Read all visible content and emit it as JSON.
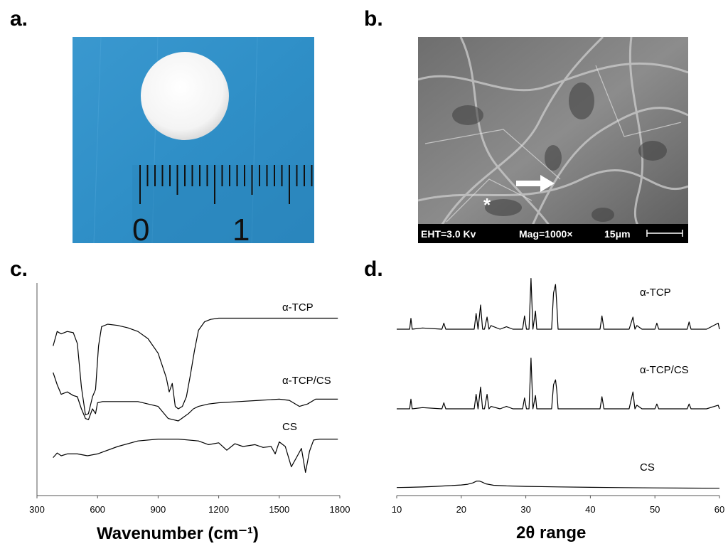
{
  "panels": {
    "a": {
      "label": "a.",
      "ruler": {
        "mark_0": "0",
        "mark_1": "1"
      }
    },
    "b": {
      "label": "b.",
      "sem_info": {
        "eht": "EHT=3.0 Kv",
        "mag": "Mag=1000×",
        "scale": "15μm"
      },
      "asterisk": "*"
    },
    "c": {
      "label": "c."
    },
    "d": {
      "label": "d."
    }
  },
  "colors": {
    "photo_background": "#2f8fc7",
    "sample": "#ffffff",
    "sem_gray": "#8c8c8c",
    "line": "#000000"
  },
  "chart_data": [
    {
      "panel": "c",
      "type": "line",
      "xlabel": "Wavenumber (cm⁻¹)",
      "ylabel": "",
      "xlim": [
        300,
        1800
      ],
      "xticks": [
        "300",
        "600",
        "900",
        "1200",
        "1500",
        "1800"
      ],
      "y_axis_ticks": false,
      "series": [
        {
          "name": "α-TCP",
          "x": [
            380,
            400,
            420,
            450,
            480,
            500,
            520,
            540,
            555,
            575,
            590,
            605,
            620,
            650,
            700,
            750,
            800,
            850,
            900,
            940,
            955,
            970,
            985,
            1000,
            1020,
            1040,
            1060,
            1080,
            1100,
            1130,
            1160,
            1200,
            1300,
            1400,
            1500,
            1600,
            1700,
            1790
          ],
          "y": [
            0.62,
            0.74,
            0.72,
            0.74,
            0.73,
            0.64,
            0.28,
            0.05,
            0.06,
            0.2,
            0.26,
            0.62,
            0.78,
            0.8,
            0.79,
            0.77,
            0.74,
            0.68,
            0.56,
            0.36,
            0.24,
            0.31,
            0.12,
            0.1,
            0.12,
            0.2,
            0.38,
            0.58,
            0.75,
            0.82,
            0.84,
            0.85,
            0.85,
            0.85,
            0.85,
            0.85,
            0.85,
            0.85
          ]
        },
        {
          "name": "α-TCP/CS",
          "x": [
            380,
            400,
            420,
            450,
            480,
            500,
            520,
            540,
            555,
            575,
            590,
            600,
            625,
            650,
            700,
            800,
            900,
            950,
            975,
            1000,
            1025,
            1050,
            1075,
            1100,
            1150,
            1200,
            1300,
            1400,
            1500,
            1550,
            1600,
            1640,
            1680,
            1790
          ],
          "y": [
            0.4,
            0.3,
            0.22,
            0.24,
            0.21,
            0.2,
            0.1,
            0.02,
            0.01,
            0.1,
            0.06,
            0.15,
            0.16,
            0.16,
            0.16,
            0.16,
            0.12,
            0.02,
            0.01,
            0.0,
            0.03,
            0.06,
            0.1,
            0.12,
            0.14,
            0.15,
            0.16,
            0.17,
            0.18,
            0.17,
            0.12,
            0.14,
            0.18,
            0.18
          ]
        },
        {
          "name": "CS",
          "x": [
            380,
            400,
            420,
            450,
            500,
            550,
            600,
            700,
            800,
            900,
            1000,
            1100,
            1150,
            1200,
            1240,
            1280,
            1320,
            1380,
            1420,
            1460,
            1480,
            1500,
            1530,
            1560,
            1590,
            1610,
            1630,
            1650,
            1670,
            1700,
            1790
          ],
          "y": [
            -0.12,
            -0.07,
            -0.1,
            -0.08,
            -0.08,
            -0.1,
            -0.08,
            0.0,
            0.06,
            0.08,
            0.08,
            0.06,
            0.02,
            0.04,
            -0.04,
            0.03,
            0.0,
            0.02,
            -0.01,
            0.0,
            -0.08,
            0.05,
            0.0,
            -0.22,
            -0.1,
            -0.02,
            -0.28,
            -0.05,
            0.07,
            0.08,
            0.08
          ]
        }
      ]
    },
    {
      "panel": "d",
      "type": "line",
      "xlabel": "2θ range",
      "ylabel": "",
      "xlim": [
        10,
        60
      ],
      "xticks": [
        "10",
        "20",
        "30",
        "40",
        "50",
        "60"
      ],
      "y_axis_ticks": false,
      "series": [
        {
          "name": "α-TCP",
          "x": [
            10,
            12,
            12.2,
            12.4,
            14,
            17,
            17.3,
            17.6,
            20,
            22,
            22.3,
            22.6,
            23,
            23.3,
            23.6,
            24,
            24.3,
            24.6,
            26,
            27,
            28,
            29.5,
            29.8,
            30.1,
            30.5,
            30.8,
            31.1,
            31.5,
            31.7,
            31.9,
            32.5,
            34,
            34.3,
            34.6,
            34.8,
            35.0,
            35.4,
            36,
            38,
            40,
            41.5,
            41.8,
            42.1,
            43,
            44,
            46,
            46.6,
            46.9,
            47.2,
            48,
            50,
            50.3,
            50.6,
            52,
            55,
            55.3,
            55.6,
            58,
            59.8,
            60
          ],
          "y": [
            0,
            0,
            0.09,
            0,
            0.01,
            0,
            0.05,
            0,
            0,
            0,
            0.13,
            0,
            0.2,
            0,
            0,
            0.1,
            0,
            0.03,
            0,
            0.02,
            0,
            0,
            0.11,
            0,
            0,
            0.42,
            0,
            0.15,
            0,
            0,
            0,
            0,
            0.3,
            0.37,
            0.2,
            0,
            0,
            0,
            0,
            0,
            0,
            0.11,
            0,
            0,
            0,
            0,
            0.1,
            0,
            0.03,
            0,
            0,
            0.05,
            0,
            0,
            0,
            0.06,
            0,
            0,
            0.05,
            0
          ]
        },
        {
          "name": "α-TCP/CS",
          "x": [
            10,
            12,
            12.2,
            12.4,
            14,
            17,
            17.3,
            17.6,
            20,
            22,
            22.3,
            22.6,
            23,
            23.3,
            23.6,
            24,
            24.3,
            24.6,
            26,
            27,
            28,
            29.5,
            29.8,
            30.1,
            30.5,
            30.8,
            31.1,
            31.5,
            31.7,
            31.9,
            32.5,
            34,
            34.3,
            34.6,
            34.8,
            35.0,
            35.4,
            36,
            38,
            40,
            41.5,
            41.8,
            42.1,
            43,
            44,
            46,
            46.6,
            46.9,
            47.2,
            48,
            50,
            50.3,
            50.6,
            52,
            55,
            55.3,
            55.6,
            58,
            59.8,
            60
          ],
          "y": [
            0,
            0,
            0.08,
            0,
            0.01,
            0,
            0.05,
            0,
            0,
            0,
            0.12,
            0,
            0.18,
            0,
            0,
            0.12,
            0,
            0.02,
            0,
            0.02,
            0,
            0,
            0.09,
            0,
            0,
            0.42,
            0,
            0.11,
            0,
            0,
            0,
            0,
            0.2,
            0.24,
            0.15,
            0,
            0,
            0,
            0,
            0,
            0,
            0.1,
            0,
            0,
            0,
            0,
            0.14,
            0,
            0.03,
            0,
            0,
            0.04,
            0,
            0,
            0,
            0.04,
            0,
            0,
            0.03,
            0
          ]
        },
        {
          "name": "CS",
          "x": [
            10,
            12,
            14,
            16,
            18,
            20,
            21,
            21.8,
            22.4,
            22.8,
            23.2,
            23.8,
            25,
            27,
            30,
            35,
            40,
            45,
            50,
            55,
            60
          ],
          "y": [
            0.01,
            0.012,
            0.016,
            0.022,
            0.03,
            0.038,
            0.045,
            0.06,
            0.08,
            0.08,
            0.07,
            0.05,
            0.035,
            0.028,
            0.022,
            0.017,
            0.012,
            0.009,
            0.006,
            0.004,
            0.002
          ]
        }
      ]
    }
  ]
}
